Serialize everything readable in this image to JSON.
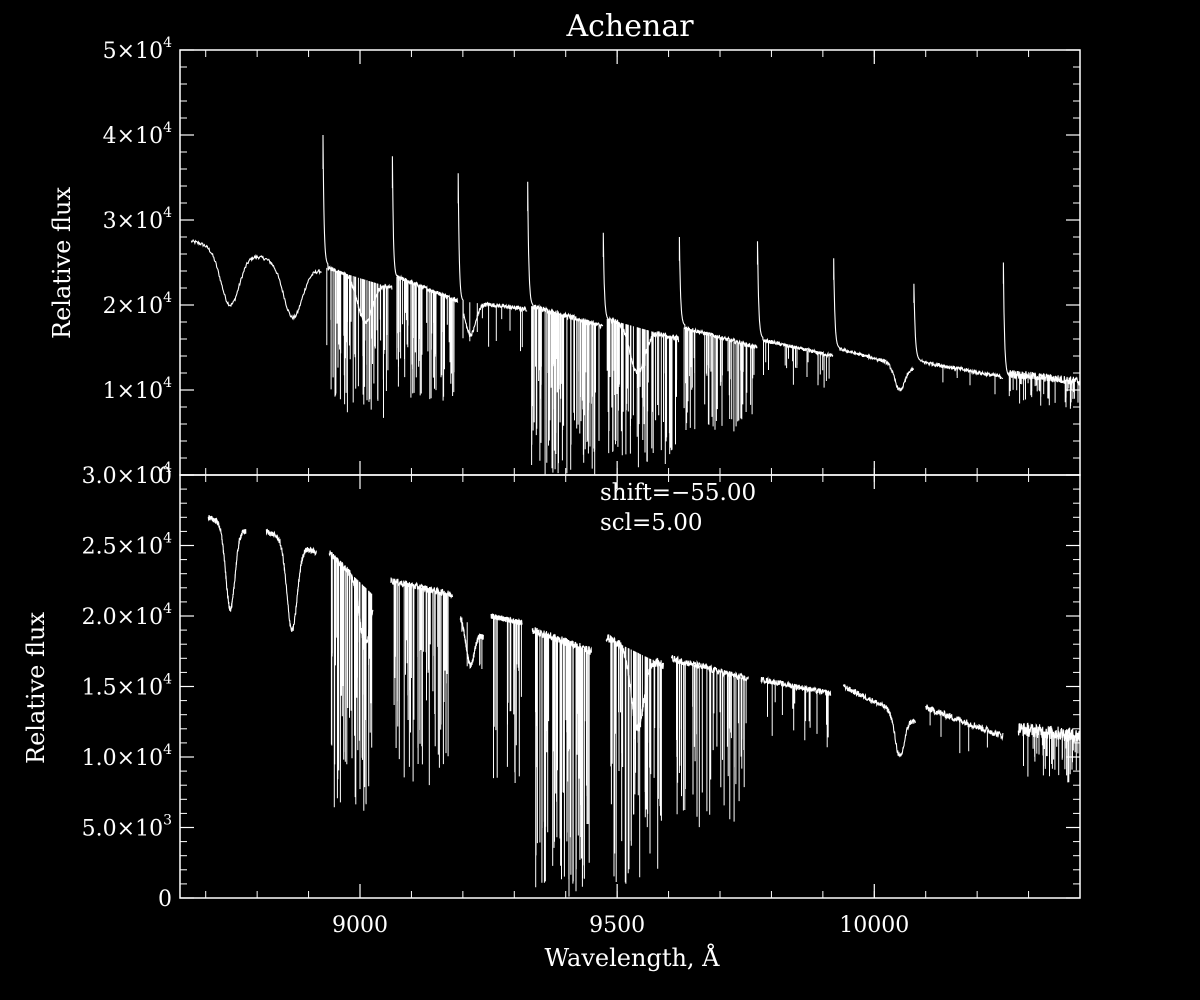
{
  "chart_data": [
    {
      "type": "line",
      "title": "Achenar",
      "ylabel": "Relative flux",
      "xlabel": "",
      "xlim": [
        8650,
        10400
      ],
      "ylim": [
        0,
        50000
      ],
      "grid": false,
      "x_ticks": [],
      "y_ticks": [
        {
          "mant": "",
          "exp": "",
          "text": "0",
          "value": 0
        },
        {
          "mant": "1×10",
          "exp": "4",
          "value": 10000
        },
        {
          "mant": "2×10",
          "exp": "4",
          "value": 20000
        },
        {
          "mant": "3×10",
          "exp": "4",
          "value": 30000
        },
        {
          "mant": "4×10",
          "exp": "4",
          "value": 40000
        },
        {
          "mant": "5×10",
          "exp": "4",
          "value": 50000
        }
      ],
      "segments": [
        {
          "start": 8672,
          "end": 8925,
          "continuum_start": 27500,
          "continuum_end": 24000,
          "spike": 0,
          "dips": [
            [
              8748,
              20000,
              18
            ],
            [
              8870,
              18500,
              18
            ]
          ],
          "lines": 0,
          "line_depth": 0,
          "noise": 400
        },
        {
          "start": 8928,
          "end": 9062,
          "continuum_start": 24500,
          "continuum_end": 22000,
          "spike": 40000,
          "dips": [
            [
              9010,
              18000,
              14
            ]
          ],
          "lines": 70,
          "line_depth": 0.7,
          "noise": 500
        },
        {
          "start": 9063,
          "end": 9190,
          "continuum_start": 23500,
          "continuum_end": 20500,
          "spike": 37500,
          "dips": [],
          "lines": 65,
          "line_depth": 0.6,
          "noise": 500
        },
        {
          "start": 9191,
          "end": 9325,
          "continuum_start": 20500,
          "continuum_end": 19500,
          "spike": 35500,
          "dips": [
            [
              9215,
              16500,
              10
            ]
          ],
          "lines": 10,
          "line_depth": 0.3,
          "noise": 500
        },
        {
          "start": 9326,
          "end": 9472,
          "continuum_start": 20000,
          "continuum_end": 17500,
          "spike": 34500,
          "dips": [],
          "lines": 95,
          "line_depth": 1.0,
          "noise": 600
        },
        {
          "start": 9473,
          "end": 9620,
          "continuum_start": 18500,
          "continuum_end": 16000,
          "spike": 28500,
          "dips": [
            [
              9540,
              12000,
              14
            ]
          ],
          "lines": 80,
          "line_depth": 0.95,
          "noise": 600
        },
        {
          "start": 9621,
          "end": 9772,
          "continuum_start": 17500,
          "continuum_end": 15000,
          "spike": 28000,
          "dips": [],
          "lines": 55,
          "line_depth": 0.7,
          "noise": 500
        },
        {
          "start": 9773,
          "end": 9920,
          "continuum_start": 16000,
          "continuum_end": 14000,
          "spike": 27500,
          "dips": [],
          "lines": 20,
          "line_depth": 0.3,
          "noise": 400
        },
        {
          "start": 9921,
          "end": 10076,
          "continuum_start": 15000,
          "continuum_end": 12500,
          "spike": 25500,
          "dips": [
            [
              10050,
              10000,
              10
            ]
          ],
          "lines": 0,
          "line_depth": 0,
          "noise": 400
        },
        {
          "start": 10077,
          "end": 10250,
          "continuum_start": 13500,
          "continuum_end": 11500,
          "spike": 22500,
          "dips": [],
          "lines": 5,
          "line_depth": 0.2,
          "noise": 500
        },
        {
          "start": 10251,
          "end": 10400,
          "continuum_start": 12000,
          "continuum_end": 11000,
          "spike": 25000,
          "dips": [],
          "lines": 40,
          "line_depth": 0.3,
          "noise": 1000
        }
      ]
    },
    {
      "type": "line",
      "title": "",
      "ylabel": "Relative flux",
      "xlabel": "Wavelength, Å",
      "xlim": [
        8650,
        10400
      ],
      "ylim": [
        0,
        30000
      ],
      "grid": false,
      "x_ticks": [
        {
          "text": "9000",
          "value": 9000
        },
        {
          "text": "9500",
          "value": 9500
        },
        {
          "text": "10000",
          "value": 10000
        }
      ],
      "y_ticks": [
        {
          "mant": "",
          "exp": "",
          "text": "0",
          "value": 0
        },
        {
          "mant": "5.0×10",
          "exp": "3",
          "value": 5000
        },
        {
          "mant": "1.0×10",
          "exp": "4",
          "value": 10000
        },
        {
          "mant": "1.5×10",
          "exp": "4",
          "value": 15000
        },
        {
          "mant": "2.0×10",
          "exp": "4",
          "value": 20000
        },
        {
          "mant": "2.5×10",
          "exp": "4",
          "value": 25000
        },
        {
          "mant": "3.0×10",
          "exp": "4",
          "value": 30000
        }
      ],
      "annotations": [
        "shift=−55.00",
        "scl=5.00"
      ],
      "segments": [
        {
          "start": 8705,
          "end": 8778,
          "continuum_start": 27000,
          "continuum_end": 26000,
          "spike": 0,
          "dips": [
            [
              8748,
              20500,
              9
            ]
          ],
          "lines": 0,
          "line_depth": 0,
          "noise": 400
        },
        {
          "start": 8818,
          "end": 8915,
          "continuum_start": 26000,
          "continuum_end": 24500,
          "spike": 0,
          "dips": [
            [
              8868,
              19000,
              10
            ]
          ],
          "lines": 0,
          "line_depth": 0,
          "noise": 400
        },
        {
          "start": 8940,
          "end": 9025,
          "continuum_start": 24500,
          "continuum_end": 21500,
          "spike": 0,
          "dips": [
            [
              9010,
              18000,
              10
            ]
          ],
          "lines": 55,
          "line_depth": 0.75,
          "noise": 500
        },
        {
          "start": 9060,
          "end": 9180,
          "continuum_start": 22500,
          "continuum_end": 21500,
          "spike": 0,
          "dips": [],
          "lines": 60,
          "line_depth": 0.65,
          "noise": 500
        },
        {
          "start": 9195,
          "end": 9240,
          "continuum_start": 20000,
          "continuum_end": 18500,
          "spike": 0,
          "dips": [
            [
              9215,
              16500,
              8
            ]
          ],
          "lines": 5,
          "line_depth": 0.2,
          "noise": 400
        },
        {
          "start": 9255,
          "end": 9315,
          "continuum_start": 20000,
          "continuum_end": 19500,
          "spike": 0,
          "dips": [],
          "lines": 20,
          "line_depth": 0.6,
          "noise": 400
        },
        {
          "start": 9335,
          "end": 9450,
          "continuum_start": 19000,
          "continuum_end": 17500,
          "spike": 0,
          "dips": [],
          "lines": 80,
          "line_depth": 1.0,
          "noise": 600
        },
        {
          "start": 9478,
          "end": 9590,
          "continuum_start": 18500,
          "continuum_end": 16500,
          "spike": 0,
          "dips": [
            [
              9540,
              12000,
              12
            ]
          ],
          "lines": 60,
          "line_depth": 0.95,
          "noise": 600
        },
        {
          "start": 9605,
          "end": 9755,
          "continuum_start": 17000,
          "continuum_end": 15500,
          "spike": 0,
          "dips": [],
          "lines": 50,
          "line_depth": 0.7,
          "noise": 500
        },
        {
          "start": 9780,
          "end": 9915,
          "continuum_start": 15500,
          "continuum_end": 14500,
          "spike": 0,
          "dips": [],
          "lines": 15,
          "line_depth": 0.3,
          "noise": 400
        },
        {
          "start": 9940,
          "end": 10080,
          "continuum_start": 15000,
          "continuum_end": 12500,
          "spike": 0,
          "dips": [
            [
              10050,
              10000,
              9
            ]
          ],
          "lines": 0,
          "line_depth": 0,
          "noise": 400
        },
        {
          "start": 10100,
          "end": 10250,
          "continuum_start": 13500,
          "continuum_end": 11500,
          "spike": 0,
          "dips": [],
          "lines": 5,
          "line_depth": 0.2,
          "noise": 500
        },
        {
          "start": 10280,
          "end": 10400,
          "continuum_start": 12000,
          "continuum_end": 11500,
          "spike": 0,
          "dips": [],
          "lines": 40,
          "line_depth": 0.3,
          "noise": 1000
        }
      ]
    }
  ]
}
